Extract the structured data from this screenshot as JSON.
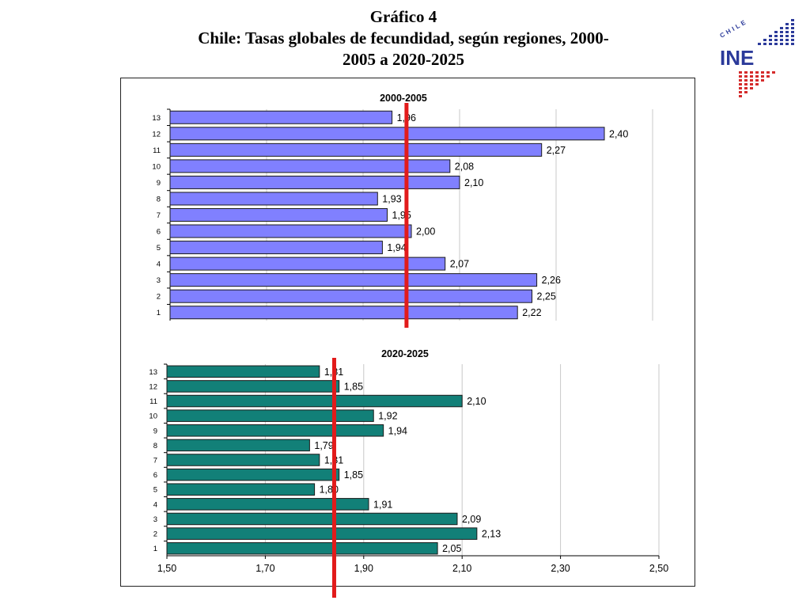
{
  "header": {
    "title_line1": "Gráfico 4",
    "title_line2": "Chile: Tasas globales de fecundidad, según regiones, 2000-",
    "title_line3": "2005 a 2020-2025"
  },
  "logo": {
    "text": "INE",
    "country": "CHILE"
  },
  "colors": {
    "accent_line": "#e21b1b",
    "bars_2000": "#8080ff",
    "bars_2020": "#128078",
    "logo_blue": "#2b3a9a",
    "logo_red": "#d52b2b"
  },
  "chart_data": [
    {
      "type": "bar",
      "orientation": "horizontal",
      "title": "2000-2005",
      "categories": [
        "13",
        "12",
        "11",
        "10",
        "9",
        "8",
        "7",
        "6",
        "5",
        "4",
        "3",
        "2",
        "1"
      ],
      "values": [
        1.96,
        2.4,
        2.27,
        2.08,
        2.1,
        1.93,
        1.95,
        2.0,
        1.94,
        2.07,
        2.26,
        2.25,
        2.22
      ],
      "labels": [
        "1,96",
        "2,40",
        "2,27",
        "2,08",
        "2,10",
        "1,93",
        "1,95",
        "2,00",
        "1,94",
        "2,07",
        "2,26",
        "2,25",
        "2,22"
      ],
      "xlim": [
        1.5,
        2.5
      ],
      "reference_line": 1.99,
      "grid": true,
      "bar_color": "#8080ff"
    },
    {
      "type": "bar",
      "orientation": "horizontal",
      "title": "2020-2025",
      "categories": [
        "13",
        "12",
        "11",
        "10",
        "9",
        "8",
        "7",
        "6",
        "5",
        "4",
        "3",
        "2",
        "1"
      ],
      "values": [
        1.81,
        1.85,
        2.1,
        1.92,
        1.94,
        1.79,
        1.81,
        1.85,
        1.8,
        1.91,
        2.09,
        2.13,
        2.05
      ],
      "labels": [
        "1,81",
        "1,85",
        "2,10",
        "1,92",
        "1,94",
        "1,79",
        "1,81",
        "1,85",
        "1,80",
        "1,91",
        "2,09",
        "2,13",
        "2,05"
      ],
      "xlim": [
        1.5,
        2.5
      ],
      "xticks": [
        1.5,
        1.7,
        1.9,
        2.1,
        2.3,
        2.5
      ],
      "xtick_labels": [
        "1,50",
        "1,70",
        "1,90",
        "2,10",
        "2,30",
        "2,50"
      ],
      "reference_line": 1.84,
      "grid": true,
      "bar_color": "#128078"
    }
  ]
}
